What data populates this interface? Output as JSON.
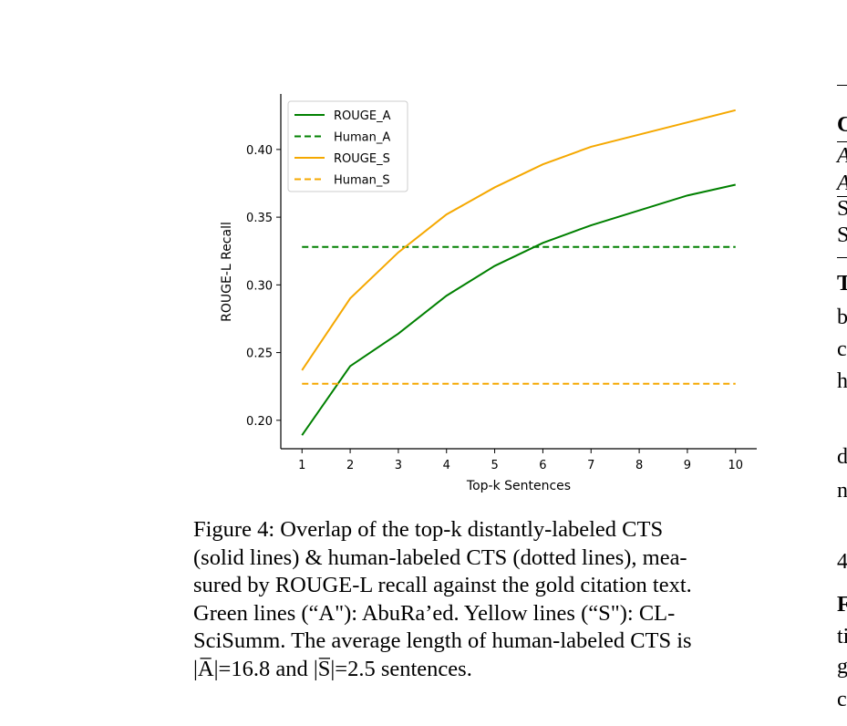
{
  "chart_data": {
    "type": "line",
    "title": "",
    "xlabel": "Top-k Sentences",
    "ylabel": "ROUGE-L Recall",
    "x": [
      1,
      2,
      3,
      4,
      5,
      6,
      7,
      8,
      9,
      10
    ],
    "xticks": [
      "1",
      "2",
      "3",
      "4",
      "5",
      "6",
      "7",
      "8",
      "9",
      "10"
    ],
    "yticks": [
      "0.20",
      "0.25",
      "0.30",
      "0.35",
      "0.40"
    ],
    "xlim": [
      0.56,
      10.44
    ],
    "ylim": [
      0.179,
      0.441
    ],
    "grid": false,
    "legend_position": "top-left",
    "series": [
      {
        "name": "ROUGE_A",
        "color": "#008000",
        "dash": false,
        "values": [
          0.189,
          0.24,
          0.264,
          0.292,
          0.314,
          0.331,
          0.344,
          0.355,
          0.366,
          0.374
        ]
      },
      {
        "name": "Human_A",
        "color": "#008000",
        "dash": true,
        "values": [
          0.328,
          0.328,
          0.328,
          0.328,
          0.328,
          0.328,
          0.328,
          0.328,
          0.328,
          0.328
        ]
      },
      {
        "name": "ROUGE_S",
        "color": "#f5a800",
        "dash": false,
        "values": [
          0.237,
          0.29,
          0.324,
          0.352,
          0.372,
          0.389,
          0.402,
          0.411,
          0.42,
          0.429
        ]
      },
      {
        "name": "Human_S",
        "color": "#f5a800",
        "dash": true,
        "values": [
          0.227,
          0.227,
          0.227,
          0.227,
          0.227,
          0.227,
          0.227,
          0.227,
          0.227,
          0.227
        ]
      }
    ]
  },
  "caption": {
    "lines": [
      "Figure 4: Overlap of the top-k distantly-labeled CTS",
      "(solid lines) & human-labeled CTS (dotted lines), mea-",
      "sured by ROUGE-L recall against the gold citation text.",
      "Green lines (“A\"): AbuRa’ed. Yellow lines (“S\"): CL-",
      "SciSumm. The average length of human-labeled CTS is",
      "|A̅|=16.8 and |S̅|=2.5 sentences."
    ]
  },
  "right_column_fragments": [
    "C",
    "A",
    "A",
    "S",
    "S",
    "T",
    "b",
    "c",
    "h",
    "d",
    "n",
    "4",
    "F",
    "ti",
    "g",
    "c"
  ]
}
